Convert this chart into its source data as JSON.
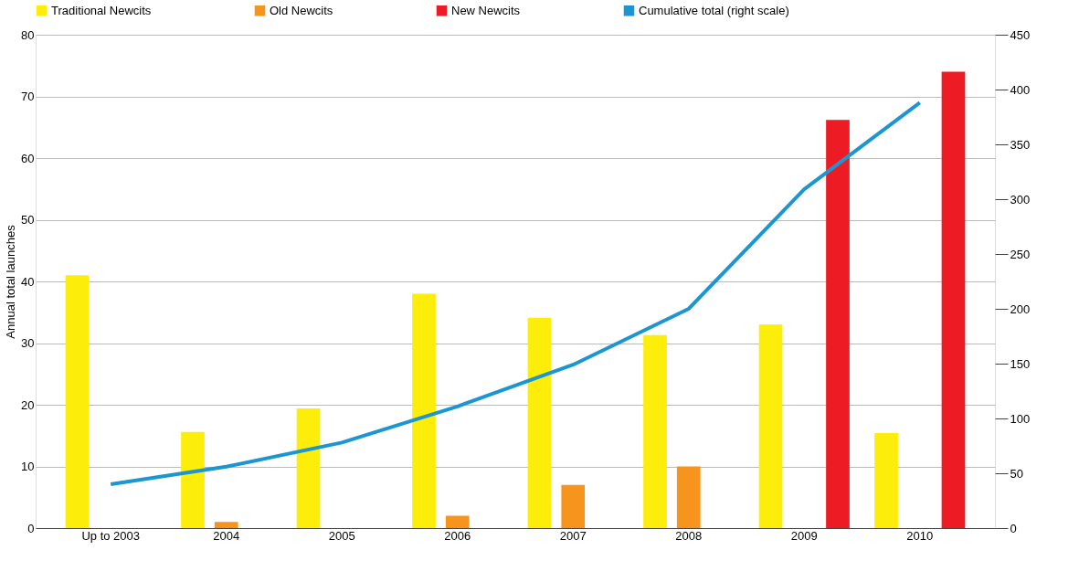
{
  "chart_data": {
    "type": "bar",
    "ylabel": "Annual total launches",
    "categories": [
      "Up to 2003",
      "2004",
      "2005",
      "2006",
      "2007",
      "2008",
      "2009",
      "2010"
    ],
    "series": [
      {
        "name": "Traditional Newcits",
        "color": "#fcee0a",
        "values": [
          41,
          15.6,
          19.4,
          38,
          34.1,
          31.3,
          33,
          15.4
        ]
      },
      {
        "name": "Old Newcits",
        "color": "#f7941d",
        "values": [
          null,
          1,
          null,
          2,
          7,
          10,
          null,
          null
        ]
      },
      {
        "name": "New Newcits",
        "color": "#ed1c24",
        "values": [
          null,
          null,
          null,
          null,
          null,
          null,
          66.2,
          74
        ]
      },
      {
        "name": "Cumulative total (right scale)",
        "color": "#1b96d3",
        "type": "line",
        "axis": "y2",
        "values": [
          40,
          56,
          78,
          111,
          149,
          200,
          309,
          388
        ]
      }
    ],
    "ylim": [
      0,
      80
    ],
    "yticks": [
      0,
      10,
      20,
      30,
      40,
      50,
      60,
      70,
      80
    ],
    "y2lim": [
      0,
      450
    ],
    "y2ticks": [
      0,
      50,
      100,
      150,
      200,
      250,
      300,
      350,
      400,
      450
    ],
    "grid": "y",
    "legend": "top"
  }
}
